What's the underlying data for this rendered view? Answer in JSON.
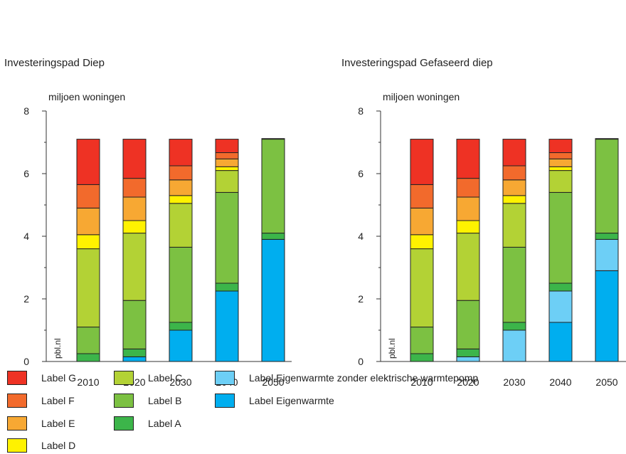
{
  "chart_data": [
    {
      "type": "bar",
      "stacked": true,
      "title": "Investeringspad Diep",
      "ylabel": "miljoen woningen",
      "ylim": [
        0,
        8
      ],
      "yticks": [
        0,
        2,
        4,
        6,
        8
      ],
      "categories": [
        "2010",
        "2020",
        "2030",
        "2040",
        "2050"
      ],
      "watermark": "pbl.nl",
      "series": [
        {
          "name": "Label Eigenwarmte",
          "values": [
            0,
            0.15,
            1.0,
            2.25,
            3.9
          ]
        },
        {
          "name": "Label Eigenwarmte zonder elektrische warmtepomp",
          "values": [
            0,
            0,
            0,
            0,
            0
          ]
        },
        {
          "name": "Label A",
          "values": [
            0.25,
            0.25,
            0.25,
            0.25,
            0.2
          ]
        },
        {
          "name": "Label B",
          "values": [
            0.85,
            1.55,
            2.4,
            2.9,
            3.0
          ]
        },
        {
          "name": "Label C",
          "values": [
            2.5,
            2.15,
            1.4,
            0.7,
            0
          ]
        },
        {
          "name": "Label D",
          "values": [
            0.45,
            0.4,
            0.25,
            0.12,
            0
          ]
        },
        {
          "name": "Label E",
          "values": [
            0.85,
            0.75,
            0.5,
            0.25,
            0
          ]
        },
        {
          "name": "Label F",
          "values": [
            0.75,
            0.6,
            0.45,
            0.2,
            0
          ]
        },
        {
          "name": "Label G",
          "values": [
            1.45,
            1.25,
            0.85,
            0.43,
            0.02
          ]
        }
      ]
    },
    {
      "type": "bar",
      "stacked": true,
      "title": "Investeringspad Gefaseerd diep",
      "ylabel": "miljoen woningen",
      "ylim": [
        0,
        8
      ],
      "yticks": [
        0,
        2,
        4,
        6,
        8
      ],
      "categories": [
        "2010",
        "2020",
        "2030",
        "2040",
        "2050"
      ],
      "watermark": "pbl.nl",
      "series": [
        {
          "name": "Label Eigenwarmte",
          "values": [
            0,
            0,
            0,
            1.25,
            2.9
          ]
        },
        {
          "name": "Label Eigenwarmte zonder elektrische warmtepomp",
          "values": [
            0,
            0.15,
            1.0,
            1.0,
            1.0
          ]
        },
        {
          "name": "Label A",
          "values": [
            0.25,
            0.25,
            0.25,
            0.25,
            0.2
          ]
        },
        {
          "name": "Label B",
          "values": [
            0.85,
            1.55,
            2.4,
            2.9,
            3.0
          ]
        },
        {
          "name": "Label C",
          "values": [
            2.5,
            2.15,
            1.4,
            0.7,
            0
          ]
        },
        {
          "name": "Label D",
          "values": [
            0.45,
            0.4,
            0.25,
            0.12,
            0
          ]
        },
        {
          "name": "Label E",
          "values": [
            0.85,
            0.75,
            0.5,
            0.25,
            0
          ]
        },
        {
          "name": "Label F",
          "values": [
            0.75,
            0.6,
            0.45,
            0.2,
            0
          ]
        },
        {
          "name": "Label G",
          "values": [
            1.45,
            1.25,
            0.85,
            0.43,
            0.02
          ]
        }
      ]
    }
  ],
  "colors": {
    "Label G": "#ee3224",
    "Label F": "#f26a2c",
    "Label E": "#f7a833",
    "Label D": "#fff200",
    "Label C": "#b3d235",
    "Label B": "#7cc142",
    "Label A": "#3cb54a",
    "Label Eigenwarmte zonder elektrische warmtepomp": "#6dcff6",
    "Label Eigenwarmte": "#00aeef"
  },
  "legend": [
    {
      "label": "Label G"
    },
    {
      "label": "Label F"
    },
    {
      "label": "Label E"
    },
    {
      "label": "Label D"
    },
    {
      "label": "Label C"
    },
    {
      "label": "Label B"
    },
    {
      "label": "Label A"
    },
    {
      "label": "Label Eigenwarmte zonder elektrische warmtepomp"
    },
    {
      "label": "Label Eigenwarmte"
    }
  ]
}
